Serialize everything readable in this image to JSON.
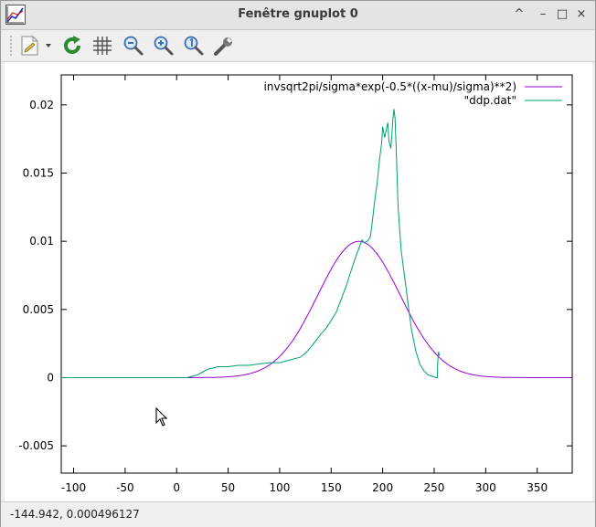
{
  "window": {
    "title": "Fenêtre gnuplot 0",
    "controls": [
      "^",
      "–",
      "□",
      "×"
    ]
  },
  "toolbar": {
    "buttons": [
      {
        "name": "export-menu",
        "icon": "document-export-icon"
      },
      {
        "name": "replot",
        "icon": "refresh-icon"
      },
      {
        "name": "grid",
        "icon": "grid-icon"
      },
      {
        "name": "zoom-previous",
        "icon": "zoom-out-icon"
      },
      {
        "name": "zoom-next",
        "icon": "zoom-in-icon"
      },
      {
        "name": "zoom-unzoom",
        "icon": "zoom-reset-icon"
      },
      {
        "name": "options",
        "icon": "wrench-icon"
      }
    ]
  },
  "status": {
    "coordinates": "-144.942,  0.000496127"
  },
  "chart_data": {
    "type": "line",
    "xlim": [
      -112,
      384
    ],
    "ylim": [
      -0.007,
      0.0222
    ],
    "xticks": [
      -100,
      -50,
      0,
      50,
      100,
      150,
      200,
      250,
      300,
      350
    ],
    "yticks": [
      -0.005,
      0,
      0.005,
      0.01,
      0.015,
      0.02
    ],
    "xtick_labels": [
      "-100",
      "-50",
      "0",
      "50",
      "100",
      "150",
      "200",
      "250",
      "300",
      "350"
    ],
    "ytick_labels": [
      "-0.005",
      "0",
      "0.005",
      "0.01",
      "0.015",
      "0.02"
    ],
    "grid": false,
    "legend_position": "top-right",
    "series": [
      {
        "name": "invsqrt2pi/sigma*exp(-0.5*((x-mu)/sigma)**2)",
        "color": "#9400d3",
        "mu": 177,
        "sigma": 39.9
      },
      {
        "name": "\"ddp.dat\"",
        "color": "#009e73",
        "x": [
          -112,
          10,
          15,
          20,
          25,
          30,
          35,
          40,
          50,
          60,
          70,
          80,
          90,
          100,
          110,
          120,
          125,
          130,
          135,
          140,
          145,
          150,
          155,
          160,
          165,
          170,
          175,
          180,
          182,
          185,
          188,
          190,
          192,
          195,
          197,
          199,
          200,
          202,
          203,
          205,
          206,
          208,
          210,
          211,
          212,
          213,
          215,
          218,
          222,
          225,
          228,
          232,
          236,
          240,
          244,
          248,
          252,
          253,
          253.5,
          254.3,
          255
        ],
        "y": [
          0,
          0,
          0.0001,
          0.0002,
          0.0004,
          0.0006,
          0.0007,
          0.0008,
          0.0008,
          0.0009,
          0.0009,
          0.001,
          0.0011,
          0.0011,
          0.0013,
          0.0015,
          0.0018,
          0.0022,
          0.0027,
          0.0032,
          0.0036,
          0.0042,
          0.0048,
          0.0058,
          0.0068,
          0.008,
          0.0091,
          0.0101,
          0.0099,
          0.01,
          0.0103,
          0.0115,
          0.0128,
          0.0145,
          0.016,
          0.0172,
          0.0184,
          0.0176,
          0.018,
          0.0187,
          0.0174,
          0.0168,
          0.019,
          0.0197,
          0.019,
          0.017,
          0.0125,
          0.0093,
          0.007,
          0.0052,
          0.0035,
          0.002,
          0.001,
          0.0005,
          0.0002,
          0.0001,
          0.0,
          0.0,
          0.0012,
          0.0019,
          0.0016
        ]
      }
    ]
  }
}
